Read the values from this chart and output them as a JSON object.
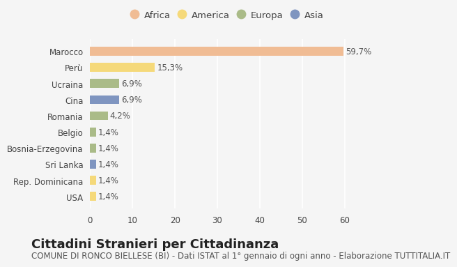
{
  "categories": [
    "Marocco",
    "Perù",
    "Ucraina",
    "Cina",
    "Romania",
    "Belgio",
    "Bosnia-Erzegovina",
    "Sri Lanka",
    "Rep. Dominicana",
    "USA"
  ],
  "values": [
    59.7,
    15.3,
    6.9,
    6.9,
    4.2,
    1.4,
    1.4,
    1.4,
    1.4,
    1.4
  ],
  "colors": [
    "#F0BC94",
    "#F5D97A",
    "#AABB88",
    "#7F95C0",
    "#AABB88",
    "#AABB88",
    "#AABB88",
    "#7F95C0",
    "#F5D97A",
    "#F5D97A"
  ],
  "labels": [
    "59,7%",
    "15,3%",
    "6,9%",
    "6,9%",
    "4,2%",
    "1,4%",
    "1,4%",
    "1,4%",
    "1,4%",
    "1,4%"
  ],
  "legend": [
    {
      "label": "Africa",
      "color": "#F0BC94"
    },
    {
      "label": "America",
      "color": "#F5D97A"
    },
    {
      "label": "Europa",
      "color": "#AABB88"
    },
    {
      "label": "Asia",
      "color": "#7F95C0"
    }
  ],
  "xlim": [
    0,
    65
  ],
  "xticks": [
    0,
    10,
    20,
    30,
    40,
    50,
    60
  ],
  "title": "Cittadini Stranieri per Cittadinanza",
  "subtitle": "COMUNE DI RONCO BIELLESE (BI) - Dati ISTAT al 1° gennaio di ogni anno - Elaborazione TUTTITALIA.IT",
  "background_color": "#f5f5f5",
  "bar_height": 0.55,
  "title_fontsize": 13,
  "subtitle_fontsize": 8.5,
  "label_fontsize": 8.5,
  "ytick_fontsize": 8.5,
  "xtick_fontsize": 8.5,
  "legend_fontsize": 9.5
}
